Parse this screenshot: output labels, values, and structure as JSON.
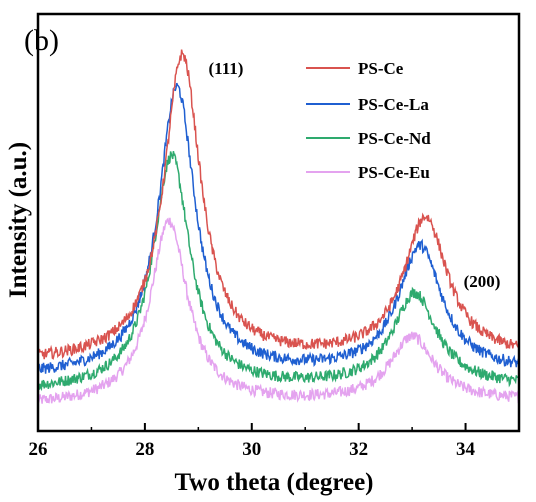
{
  "panel_label": "(b)",
  "chart_data": {
    "type": "line",
    "xlabel": "Two theta (degree)",
    "ylabel": "Intensity (a.u.)",
    "xlim": [
      26,
      35
    ],
    "ylim": [
      0,
      5.8
    ],
    "x_ticks": [
      "26",
      "28",
      "30",
      "32",
      "34"
    ],
    "x_tick_values": [
      26,
      28,
      30,
      32,
      34
    ],
    "y_tick_labels_shown": false,
    "grid": false,
    "legend_position": "top-right",
    "annotations": [
      {
        "text": "(111)",
        "x": 28.7
      },
      {
        "text": "(200)",
        "x": 33.3
      }
    ],
    "series": [
      {
        "name": "PS-Ce",
        "color": "#d9534f",
        "peaks": [
          {
            "center": 28.7,
            "height": 4.25
          },
          {
            "center": 33.25,
            "height": 1.95
          }
        ],
        "baseline": 0.95
      },
      {
        "name": "PS-Ce-La",
        "color": "#1f5fd1",
        "peaks": [
          {
            "center": 28.6,
            "height": 4.0
          },
          {
            "center": 33.15,
            "height": 1.75
          }
        ],
        "baseline": 0.75
      },
      {
        "name": "PS-Ce-Nd",
        "color": "#2eaa6e",
        "peaks": [
          {
            "center": 28.5,
            "height": 3.25
          },
          {
            "center": 33.05,
            "height": 1.3
          }
        ],
        "baseline": 0.55
      },
      {
        "name": "PS-Ce-Eu",
        "color": "#e4a3ef",
        "peaks": [
          {
            "center": 28.45,
            "height": 2.55
          },
          {
            "center": 33.0,
            "height": 0.9
          }
        ],
        "baseline": 0.35
      }
    ]
  }
}
